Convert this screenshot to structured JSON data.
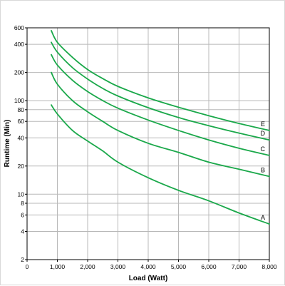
{
  "chart_data": {
    "type": "line",
    "xlabel": "Load (Watt)",
    "ylabel": "Runtime (Min)",
    "y_scale": "log",
    "xlim": [
      0,
      8000
    ],
    "ylim": [
      2,
      600
    ],
    "grid": true,
    "colors": {
      "series": "#1aa84a",
      "grid": "#b8b8b8",
      "axis": "#000000"
    },
    "x_ticks": [
      {
        "value": 0,
        "label": "0"
      },
      {
        "value": 1000,
        "label": "1,000"
      },
      {
        "value": 2000,
        "label": "2,000"
      },
      {
        "value": 3000,
        "label": "3,000"
      },
      {
        "value": 4000,
        "label": "4,000"
      },
      {
        "value": 5000,
        "label": "5,000"
      },
      {
        "value": 6000,
        "label": "6,000"
      },
      {
        "value": 7000,
        "label": "7,000"
      },
      {
        "value": 8000,
        "label": "8,000"
      }
    ],
    "y_ticks": [
      {
        "value": 2,
        "label": "2"
      },
      {
        "value": 4,
        "label": "4"
      },
      {
        "value": 6,
        "label": "6"
      },
      {
        "value": 8,
        "label": "8"
      },
      {
        "value": 10,
        "label": "10"
      },
      {
        "value": 20,
        "label": "20"
      },
      {
        "value": 40,
        "label": "40"
      },
      {
        "value": 60,
        "label": "60"
      },
      {
        "value": 80,
        "label": "80"
      },
      {
        "value": 100,
        "label": "100"
      },
      {
        "value": 200,
        "label": "200"
      },
      {
        "value": 400,
        "label": "400"
      },
      {
        "value": 600,
        "label": "600"
      }
    ],
    "series": [
      {
        "name": "A",
        "points": [
          [
            800,
            90
          ],
          [
            1000,
            72
          ],
          [
            1500,
            48
          ],
          [
            2000,
            37
          ],
          [
            2500,
            29
          ],
          [
            3000,
            22
          ],
          [
            4000,
            15
          ],
          [
            5000,
            11
          ],
          [
            6000,
            8.5
          ],
          [
            7000,
            6.3
          ],
          [
            8000,
            4.8
          ]
        ]
      },
      {
        "name": "B",
        "points": [
          [
            800,
            200
          ],
          [
            1000,
            150
          ],
          [
            1500,
            100
          ],
          [
            2000,
            76
          ],
          [
            2500,
            60
          ],
          [
            3000,
            48
          ],
          [
            4000,
            35
          ],
          [
            5000,
            28
          ],
          [
            6000,
            22
          ],
          [
            7000,
            18.5
          ],
          [
            8000,
            15.5
          ]
        ]
      },
      {
        "name": "C",
        "points": [
          [
            800,
            310
          ],
          [
            1000,
            240
          ],
          [
            1500,
            165
          ],
          [
            2000,
            125
          ],
          [
            2500,
            100
          ],
          [
            3000,
            83
          ],
          [
            4000,
            62
          ],
          [
            5000,
            48
          ],
          [
            6000,
            38
          ],
          [
            7000,
            31
          ],
          [
            8000,
            26
          ]
        ]
      },
      {
        "name": "D",
        "points": [
          [
            800,
            420
          ],
          [
            1000,
            330
          ],
          [
            1500,
            225
          ],
          [
            2000,
            170
          ],
          [
            2500,
            135
          ],
          [
            3000,
            112
          ],
          [
            4000,
            84
          ],
          [
            5000,
            66
          ],
          [
            6000,
            54
          ],
          [
            7000,
            45
          ],
          [
            8000,
            38
          ]
        ]
      },
      {
        "name": "E",
        "points": [
          [
            800,
            560
          ],
          [
            1000,
            420
          ],
          [
            1500,
            290
          ],
          [
            2000,
            215
          ],
          [
            2500,
            172
          ],
          [
            3000,
            142
          ],
          [
            4000,
            107
          ],
          [
            5000,
            85
          ],
          [
            6000,
            69
          ],
          [
            7000,
            57
          ],
          [
            8000,
            48
          ]
        ]
      }
    ]
  }
}
